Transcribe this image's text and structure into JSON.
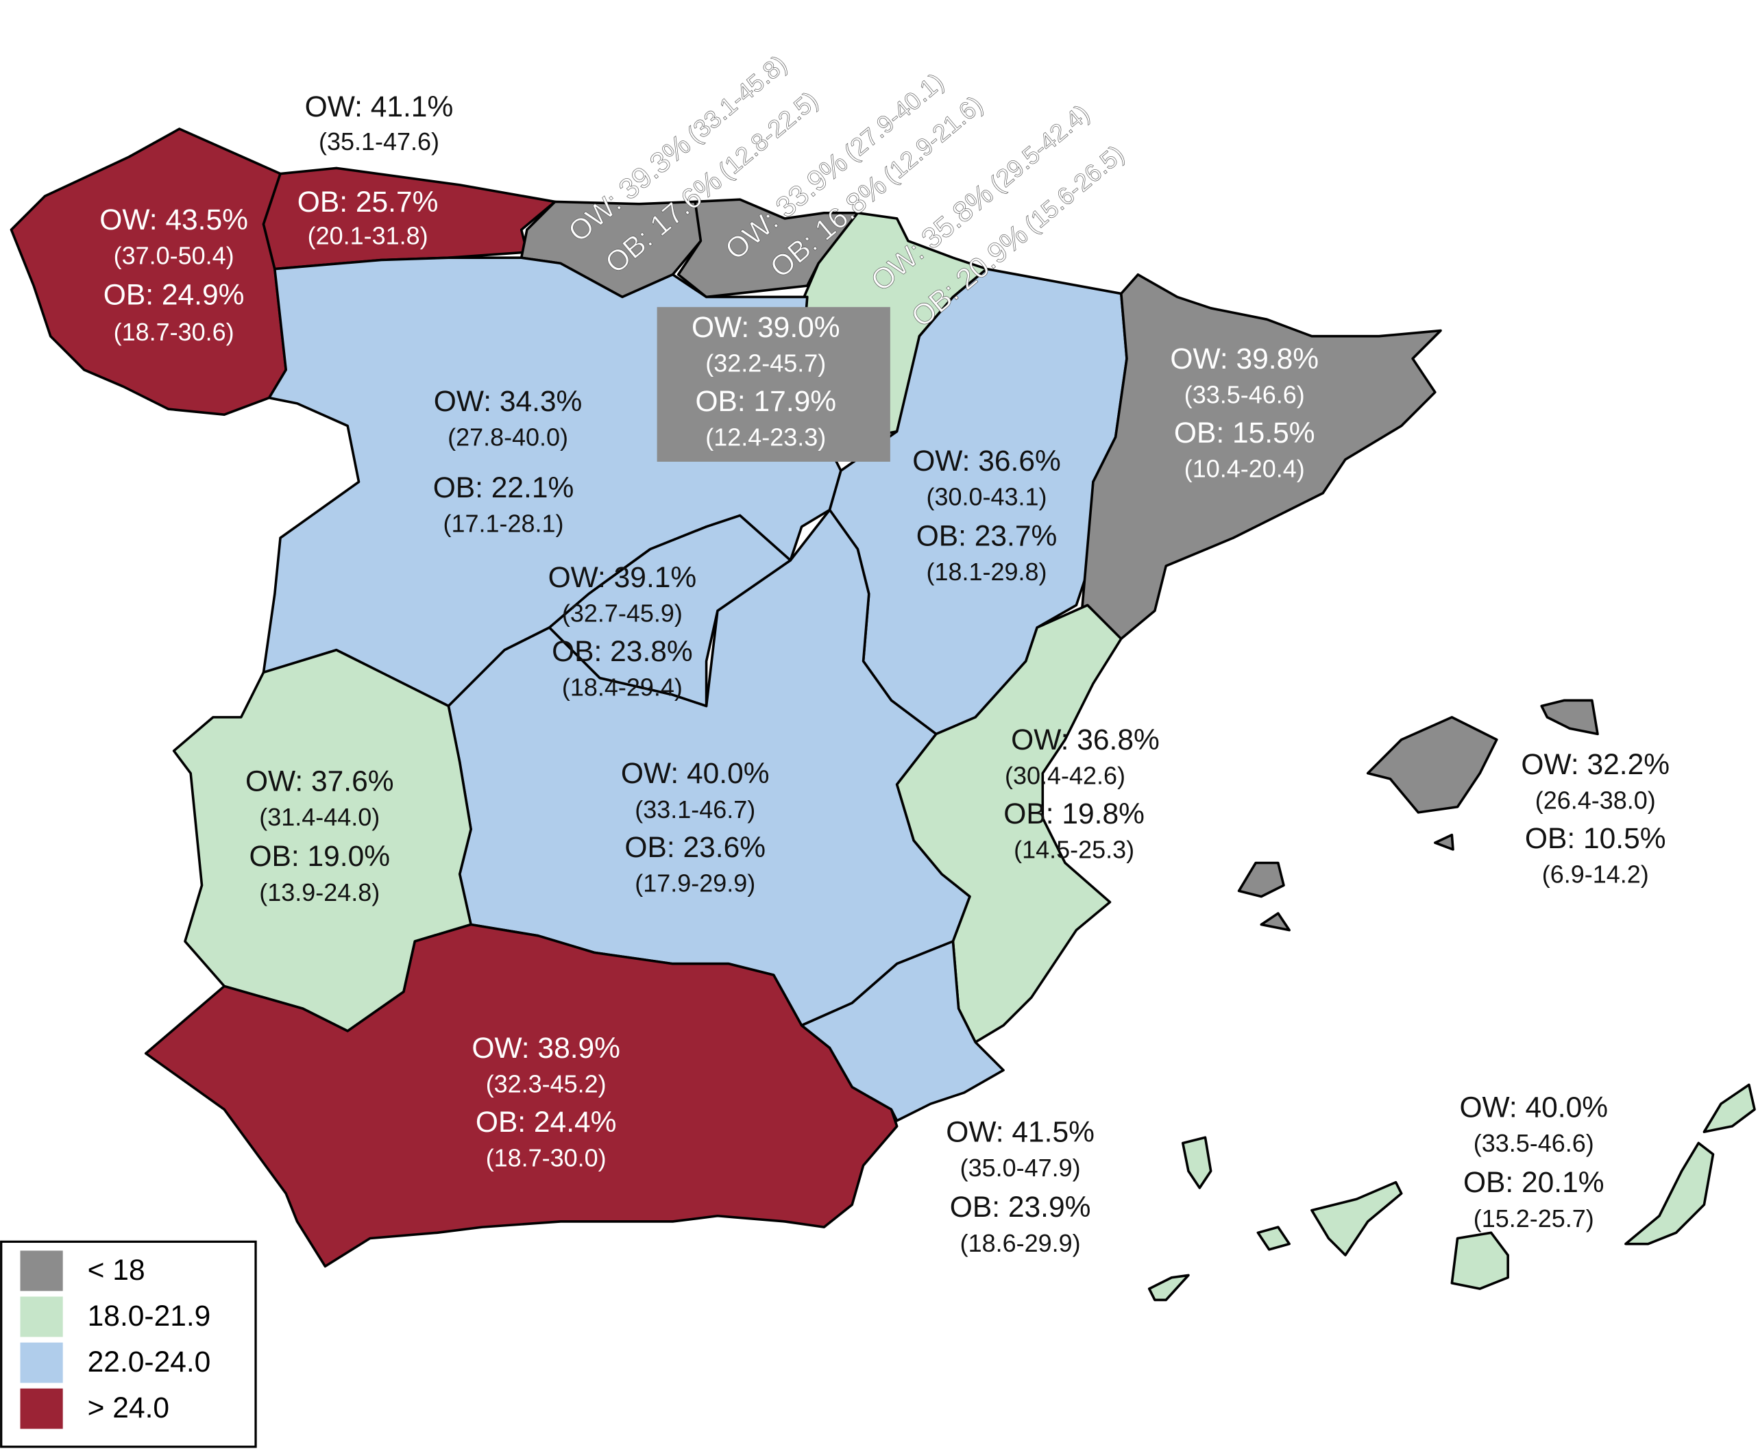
{
  "regions": [
    {
      "ow": "OW: 43.5%",
      "ow_ci": "(37.0-50.4)",
      "ob": "OB: 24.9%",
      "ob_ci": "(18.7-30.6)"
    },
    {
      "ow": "OW: 41.1%",
      "ow_ci": "(35.1-47.6)",
      "ob": "OB: 25.7%",
      "ob_ci": "(20.1-31.8)"
    },
    {
      "ow": "OW: 39.3%",
      "ow_ci": "(33.1-45.8)",
      "ob": "OB: 17.6%",
      "ob_ci": "(12.8-22.5)"
    },
    {
      "ow": "OW: 33.9%",
      "ow_ci": "(27.9-40.1)",
      "ob": "OB: 16.8%",
      "ob_ci": "(12.9-21.6)"
    },
    {
      "ow": "OW: 35.8%",
      "ow_ci": "(29.5-42.4)",
      "ob": "OB: 20.9%",
      "ob_ci": "(15.6-26.5)"
    },
    {
      "ow": "OW: 39.0%",
      "ow_ci": "(32.2-45.7)",
      "ob": "OB: 17.9%",
      "ob_ci": "(12.4-23.3)"
    },
    {
      "ow": "OW: 34.3%",
      "ow_ci": "(27.8-40.0)",
      "ob": "OB: 22.1%",
      "ob_ci": "(17.1-28.1)"
    },
    {
      "ow": "OW: 36.6%",
      "ow_ci": "(30.0-43.1)",
      "ob": "OB: 23.7%",
      "ob_ci": "(18.1-29.8)"
    },
    {
      "ow": "OW: 39.8%",
      "ow_ci": "(33.5-46.6)",
      "ob": "OB: 15.5%",
      "ob_ci": "(10.4-20.4)"
    },
    {
      "ow": "OW: 39.1%",
      "ow_ci": "(32.7-45.9)",
      "ob": "OB: 23.8%",
      "ob_ci": "(18.4-29.4)"
    },
    {
      "ow": "OW: 40.0%",
      "ow_ci": "(33.1-46.7)",
      "ob": "OB: 23.6%",
      "ob_ci": "(17.9-29.9)"
    },
    {
      "ow": "OW: 36.8%",
      "ow_ci": "(30.4-42.6)",
      "ob": "OB: 19.8%",
      "ob_ci": "(14.5-25.3)"
    },
    {
      "ow": "OW: 37.6%",
      "ow_ci": "(31.4-44.0)",
      "ob": "OB: 19.0%",
      "ob_ci": "(13.9-24.8)"
    },
    {
      "ow": "OW: 38.9%",
      "ow_ci": "(32.3-45.2)",
      "ob": "OB: 24.4%",
      "ob_ci": "(18.7-30.0)"
    },
    {
      "ow": "OW: 41.5%",
      "ow_ci": "(35.0-47.9)",
      "ob": "OB: 23.9%",
      "ob_ci": "(18.6-29.9)"
    },
    {
      "ow": "OW: 32.2%",
      "ow_ci": "(26.4-38.0)",
      "ob": "OB: 10.5%",
      "ob_ci": "(6.9-14.2)"
    },
    {
      "ow": "OW: 40.0%",
      "ow_ci": "(33.5-46.6)",
      "ob": "OB: 20.1%",
      "ob_ci": "(15.2-25.7)"
    }
  ],
  "legend": {
    "items": [
      "< 18",
      "18.0-21.9",
      "22.0-24.0",
      "> 24.0"
    ]
  }
}
